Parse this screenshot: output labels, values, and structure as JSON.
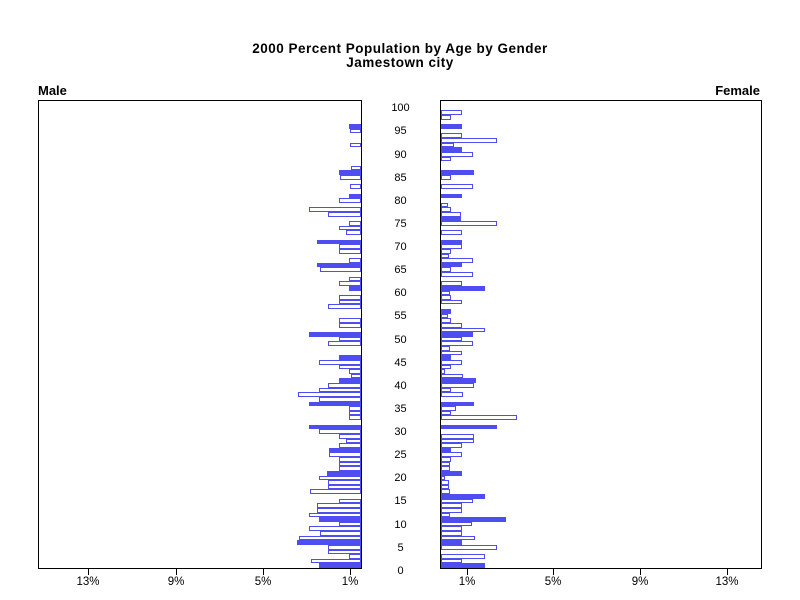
{
  "chart_data": {
    "type": "bar",
    "variant": "population-pyramid",
    "title": "2000 Percent Population by Age by Gender",
    "subtitle": "Jamestown city",
    "left_panel_label": "Male",
    "right_panel_label": "Female",
    "unit": "percent",
    "age_min": 0,
    "age_max": 100,
    "age_tick_interval": 5,
    "age_ticks": [
      0,
      5,
      10,
      15,
      20,
      25,
      30,
      35,
      40,
      45,
      50,
      55,
      60,
      65,
      70,
      75,
      80,
      85,
      90,
      95,
      100
    ],
    "x_axis": {
      "male_tick_labels": [
        "13%",
        "9%",
        "5%",
        "1%"
      ],
      "male_tick_values": [
        13,
        9,
        5,
        1
      ],
      "female_tick_labels": [
        "1%",
        "5%",
        "9%",
        "13%"
      ],
      "female_tick_values": [
        1,
        5,
        9,
        13
      ],
      "xlim": [
        0,
        14.8
      ],
      "grid": false
    },
    "bar_color": "#4d4df0",
    "highlight_every": 5,
    "legend": "none",
    "series": [
      {
        "name": "Male",
        "values": [
          1.95,
          2.3,
          0.55,
          1.5,
          1.5,
          2.95,
          2.85,
          1.9,
          2.4,
          1.0,
          1.95,
          2.4,
          2.0,
          2.0,
          1.0,
          0,
          2.35,
          1.5,
          1.5,
          1.95,
          1.55,
          1.0,
          1.0,
          1.0,
          1.45,
          1.45,
          1.0,
          0.7,
          1.0,
          1.95,
          2.4,
          0,
          0.55,
          0.55,
          0.55,
          2.4,
          1.95,
          2.9,
          1.95,
          1.5,
          1.0,
          0.45,
          0.55,
          1.0,
          1.95,
          1.0,
          0,
          0,
          1.5,
          1.0,
          2.4,
          0,
          1.0,
          1.0,
          0,
          0,
          1.5,
          1.0,
          1.0,
          0,
          0.55,
          1.0,
          0.55,
          0,
          1.9,
          2.0,
          0.55,
          0,
          1.0,
          1.0,
          2.0,
          0,
          0.7,
          1.0,
          0.55,
          0,
          1.5,
          2.4,
          0,
          1.0,
          0.55,
          0,
          0.5,
          0,
          0.95,
          1.0,
          0.45,
          0,
          0,
          0,
          0,
          0.5,
          0,
          0,
          0.5,
          0.55,
          0,
          0,
          0,
          0,
          0
        ]
      },
      {
        "name": "Female",
        "values": [
          2.0,
          0.95,
          2.0,
          0,
          2.55,
          0.95,
          1.55,
          0.95,
          0.95,
          1.4,
          3.0,
          0.4,
          0.95,
          0.95,
          1.45,
          2.0,
          0.4,
          0.35,
          0.35,
          0.2,
          0.95,
          0.4,
          0.4,
          0.45,
          0.95,
          0.45,
          0.95,
          1.5,
          1.5,
          0,
          2.55,
          0,
          3.5,
          0.45,
          0.7,
          1.5,
          0,
          1.0,
          0.45,
          1.5,
          1.6,
          1.0,
          0.2,
          0.45,
          0.95,
          0.45,
          0.95,
          0.4,
          1.45,
          0.95,
          1.45,
          2.0,
          0.95,
          0.45,
          0.3,
          0.45,
          0,
          0.95,
          0.45,
          0.4,
          2.0,
          0.95,
          0,
          1.45,
          0.45,
          0.95,
          1.45,
          0.35,
          0.45,
          0.95,
          0.95,
          0,
          0.95,
          0,
          2.55,
          0.9,
          0.9,
          0.45,
          0.3,
          0,
          0.95,
          0,
          1.45,
          0,
          0.45,
          1.5,
          0,
          0,
          0.45,
          1.45,
          0.95,
          0.6,
          2.55,
          0.95,
          0,
          0.95,
          0,
          0.45,
          0.95,
          0,
          0
        ]
      }
    ]
  }
}
